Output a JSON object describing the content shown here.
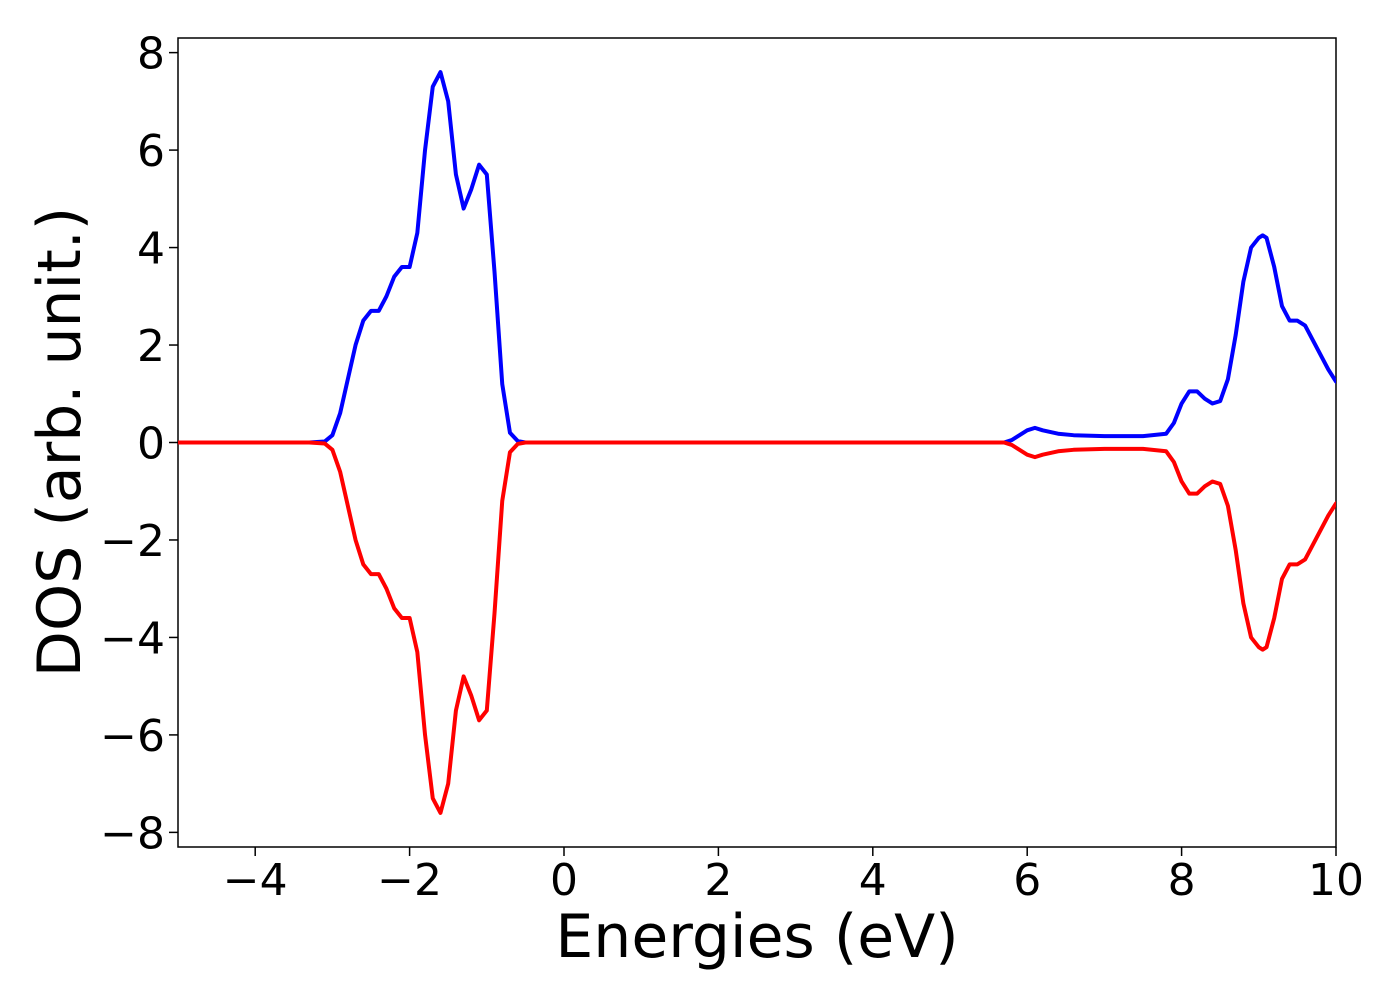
{
  "chart_data": {
    "type": "line",
    "xlabel": "Energies (eV)",
    "ylabel": "DOS (arb. unit.)",
    "xlim": [
      -5,
      10
    ],
    "ylim": [
      -8.3,
      8.3
    ],
    "xticks": [
      -4,
      -2,
      0,
      2,
      4,
      6,
      8,
      10
    ],
    "xtick_labels": [
      "−4",
      "−2",
      "0",
      "2",
      "4",
      "6",
      "8",
      "10"
    ],
    "yticks": [
      8,
      6,
      4,
      2,
      0,
      -2,
      -4,
      -6,
      -8
    ],
    "ytick_labels": [
      "8",
      "6",
      "4",
      "2",
      "0",
      "−2",
      "−4",
      "−6",
      "−8"
    ],
    "grid": false,
    "series": [
      {
        "color": "#0000ff",
        "x": [
          -5,
          -3.3,
          -3.1,
          -3.0,
          -2.9,
          -2.8,
          -2.7,
          -2.6,
          -2.5,
          -2.4,
          -2.3,
          -2.2,
          -2.1,
          -2.0,
          -1.9,
          -1.8,
          -1.7,
          -1.6,
          -1.5,
          -1.4,
          -1.3,
          -1.2,
          -1.1,
          -1.0,
          -0.9,
          -0.8,
          -0.7,
          -0.6,
          -0.5,
          -0.4,
          5.7,
          5.8,
          5.9,
          6.0,
          6.1,
          6.2,
          6.4,
          6.6,
          7.0,
          7.5,
          7.8,
          7.9,
          8.0,
          8.1,
          8.2,
          8.3,
          8.4,
          8.5,
          8.6,
          8.7,
          8.8,
          8.9,
          9.0,
          9.05,
          9.1,
          9.2,
          9.3,
          9.4,
          9.5,
          9.6,
          9.7,
          9.8,
          9.9,
          10.0
        ],
        "y": [
          0,
          0,
          0.02,
          0.15,
          0.6,
          1.3,
          2.0,
          2.5,
          2.7,
          2.7,
          3.0,
          3.4,
          3.6,
          3.6,
          4.3,
          6.0,
          7.3,
          7.6,
          7.0,
          5.5,
          4.8,
          5.2,
          5.7,
          5.5,
          3.5,
          1.2,
          0.2,
          0.03,
          0,
          0,
          0,
          0.05,
          0.15,
          0.25,
          0.3,
          0.25,
          0.18,
          0.15,
          0.13,
          0.13,
          0.18,
          0.4,
          0.8,
          1.05,
          1.05,
          0.9,
          0.8,
          0.85,
          1.3,
          2.2,
          3.3,
          4.0,
          4.2,
          4.25,
          4.2,
          3.6,
          2.8,
          2.5,
          2.5,
          2.4,
          2.1,
          1.8,
          1.5,
          1.25
        ]
      },
      {
        "color": "#ff0000",
        "x": [
          -5,
          -3.3,
          -3.1,
          -3.0,
          -2.9,
          -2.8,
          -2.7,
          -2.6,
          -2.5,
          -2.4,
          -2.3,
          -2.2,
          -2.1,
          -2.0,
          -1.9,
          -1.8,
          -1.7,
          -1.6,
          -1.5,
          -1.4,
          -1.3,
          -1.2,
          -1.1,
          -1.0,
          -0.9,
          -0.8,
          -0.7,
          -0.6,
          -0.5,
          -0.4,
          5.7,
          5.8,
          5.9,
          6.0,
          6.1,
          6.2,
          6.4,
          6.6,
          7.0,
          7.5,
          7.8,
          7.9,
          8.0,
          8.1,
          8.2,
          8.3,
          8.4,
          8.5,
          8.6,
          8.7,
          8.8,
          8.9,
          9.0,
          9.05,
          9.1,
          9.2,
          9.3,
          9.4,
          9.5,
          9.6,
          9.7,
          9.8,
          9.9,
          10.0
        ],
        "y": [
          0,
          0,
          -0.02,
          -0.15,
          -0.6,
          -1.3,
          -2.0,
          -2.5,
          -2.7,
          -2.7,
          -3.0,
          -3.4,
          -3.6,
          -3.6,
          -4.3,
          -6.0,
          -7.3,
          -7.6,
          -7.0,
          -5.5,
          -4.8,
          -5.2,
          -5.7,
          -5.5,
          -3.5,
          -1.2,
          -0.2,
          -0.03,
          0,
          0,
          0,
          -0.05,
          -0.15,
          -0.25,
          -0.3,
          -0.25,
          -0.18,
          -0.15,
          -0.13,
          -0.13,
          -0.18,
          -0.4,
          -0.8,
          -1.05,
          -1.05,
          -0.9,
          -0.8,
          -0.85,
          -1.3,
          -2.2,
          -3.3,
          -4.0,
          -4.2,
          -4.25,
          -4.2,
          -3.6,
          -2.8,
          -2.5,
          -2.5,
          -2.4,
          -2.1,
          -1.8,
          -1.5,
          -1.25
        ]
      }
    ]
  }
}
